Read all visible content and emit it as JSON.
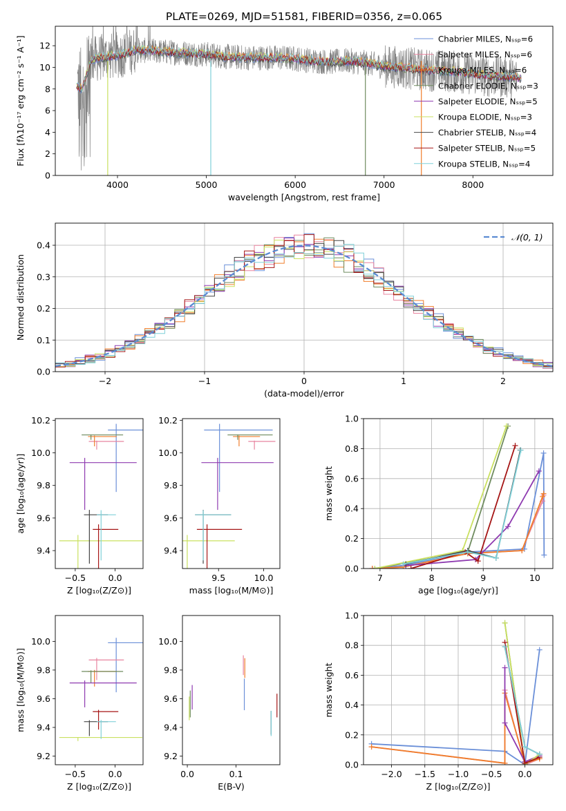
{
  "figure": {
    "title": "PLATE=0269, MJD=51581, FIBERID=0356, z=0.065",
    "series_colors": [
      "#6a8fd8",
      "#e8849f",
      "#f07d2a",
      "#6e8b5e",
      "#8e3ab0",
      "#c9e05f",
      "#444444",
      "#a51414",
      "#7fd0d8"
    ],
    "series_names": [
      "Chabrier MILES, N$_{SSP}$=6",
      "Salpeter MILES, N$_{SSP}$=6",
      "Kroupa MILES, N$_{SSP}$=6",
      "Chabrier ELODIE, N$_{SSP}$=3",
      "Salpeter ELODIE, N$_{SSP}$=5",
      "Kroupa ELODIE, N$_{SSP}$=3",
      "Chabrier STELIB, N$_{SSP}$=4",
      "Salpeter STELIB, N$_{SSP}$=5",
      "Kroupa STELIB, N$_{SSP}$=4"
    ]
  },
  "chart_data": [
    {
      "id": "spectrum",
      "type": "line",
      "xlabel": "wavelength [Angstrom, rest frame]",
      "ylabel": "Flux [f$_\\lambda$10$^{-17}$ erg cm$^{-2}$ s$^{-1}$ A$^{-1}$]",
      "xlim": [
        3300,
        8900
      ],
      "ylim": [
        0,
        13.8
      ],
      "xticks": [
        4000,
        5000,
        6000,
        7000,
        8000
      ],
      "yticks": [
        0,
        2,
        4,
        6,
        8,
        10,
        12
      ],
      "legend": {
        "placement": "upper right",
        "entries": [
          "Chabrier MILES, N$_{SSP}$=6",
          "Salpeter MILES, N$_{SSP}$=6",
          "Kroupa MILES, N$_{SSP}$=6",
          "Chabrier ELODIE, N$_{SSP}$=3",
          "Salpeter ELODIE, N$_{SSP}$=5",
          "Kroupa ELODIE, N$_{SSP}$=3",
          "Chabrier STELIB, N$_{SSP}$=4",
          "Salpeter STELIB, N$_{SSP}$=5",
          "Kroupa STELIB, N$_{SSP}$=4"
        ]
      },
      "data_envelope": {
        "x": [
          3550,
          3600,
          3700,
          3800,
          3900,
          4000,
          4100,
          4200,
          4400,
          4600,
          4800,
          5000,
          5200,
          5400,
          5600,
          5800,
          6000,
          6200,
          6400,
          6600,
          6800,
          7000,
          7200,
          7400,
          7600,
          7800,
          8000,
          8200,
          8400,
          8500
        ],
        "y": [
          8.2,
          8.0,
          10.6,
          10.9,
          11.0,
          11.1,
          11.3,
          11.6,
          11.5,
          11.4,
          11.3,
          11.2,
          11.0,
          10.9,
          10.9,
          10.9,
          10.8,
          10.6,
          10.5,
          10.6,
          10.4,
          10.1,
          10.0,
          9.8,
          9.7,
          9.6,
          9.4,
          9.2,
          9.1,
          9.0
        ]
      },
      "model_drops_x": [
        3890,
        5050,
        6790,
        7420
      ]
    },
    {
      "id": "residuals",
      "type": "histogram",
      "xlabel": "(data-model)/error",
      "ylabel": "Normed distribution",
      "xlim": [
        -2.5,
        2.5
      ],
      "ylim": [
        0,
        0.47
      ],
      "xticks": [
        -2,
        -1,
        0,
        1,
        2
      ],
      "xtick_labels": [
        "−2",
        "−1",
        "0",
        "1",
        "2"
      ],
      "yticks": [
        0.0,
        0.1,
        0.2,
        0.3,
        0.4
      ],
      "grid": true,
      "legend": {
        "placement": "upper right",
        "entries": [
          "$\\mathcal{N}(0,1)$"
        ]
      },
      "reference_curve": {
        "name": "$\\mathcal{N}(0,1)$",
        "mean": 0,
        "sigma": 1
      },
      "bin_width": 0.1
    },
    {
      "id": "age-vs-Z",
      "type": "errorbar",
      "xlabel": "Z [log$_{10}$($Z/Z_\\odot$)]",
      "ylabel": "age  [log$_{10}$($age/yr$)]",
      "xlim": [
        -0.75,
        0.35
      ],
      "ylim": [
        9.29,
        10.21
      ],
      "xticks": [
        -0.5,
        0.0
      ],
      "xtick_labels": [
        "−0.5",
        "0.0"
      ],
      "yticks": [
        9.4,
        9.6,
        9.8,
        10.0,
        10.2
      ],
      "points": [
        {
          "x": 0.14,
          "xerr": 0.23,
          "y": 10.14,
          "yerr": 0.76
        },
        {
          "x": -0.11,
          "xerr": 0.22,
          "y": 10.07,
          "yerr": 0.1
        },
        {
          "x": -0.16,
          "xerr": 0.18,
          "y": 10.1,
          "yerr": 0.12
        },
        {
          "x": -0.16,
          "xerr": 0.26,
          "y": 10.11,
          "yerr": 0.06
        },
        {
          "x": -0.15,
          "xerr": 0.42,
          "y": 9.94,
          "yerr": 0.58
        },
        {
          "x": -0.18,
          "xerr": 0.52,
          "y": 9.46,
          "yerr": 0.72
        },
        {
          "x": -0.24,
          "xerr": 0.15,
          "y": 9.62,
          "yerr": 0.6
        },
        {
          "x": -0.12,
          "xerr": 0.16,
          "y": 9.53,
          "yerr": 0.62
        },
        {
          "x": -0.11,
          "xerr": 0.12,
          "y": 9.62,
          "yerr": 0.56
        }
      ]
    },
    {
      "id": "age-vs-mass",
      "type": "errorbar",
      "xlabel": "mass [log$_{10}$($M/M_\\odot$)]",
      "ylabel": "",
      "xlim": [
        9.1,
        10.18
      ],
      "ylim": [
        9.29,
        10.21
      ],
      "xticks": [
        9.5,
        10.0
      ],
      "yticks": [
        9.4,
        9.6,
        9.8,
        10.0,
        10.2
      ],
      "points": [
        {
          "x": 9.72,
          "xerr": 0.38,
          "y": 10.14,
          "yerr": 0.76
        },
        {
          "x": 9.98,
          "xerr": 0.15,
          "y": 10.07,
          "yerr": 0.1
        },
        {
          "x": 9.81,
          "xerr": 0.15,
          "y": 10.1,
          "yerr": 0.12
        },
        {
          "x": 9.85,
          "xerr": 0.25,
          "y": 10.11,
          "yerr": 0.06
        },
        {
          "x": 9.71,
          "xerr": 0.4,
          "y": 9.94,
          "yerr": 0.58
        },
        {
          "x": 9.34,
          "xerr": 0.34,
          "y": 9.46,
          "yerr": 0.72
        },
        {
          "x": 9.44,
          "xerr": 0.2,
          "y": 9.62,
          "yerr": 0.6
        },
        {
          "x": 9.51,
          "xerr": 0.25,
          "y": 9.53,
          "yerr": 0.62
        },
        {
          "x": 9.44,
          "xerr": 0.2,
          "y": 9.62,
          "yerr": 0.56
        }
      ]
    },
    {
      "id": "weight-vs-age",
      "type": "line",
      "xlabel": "age  [log$_{10}$($age/yr$)]",
      "ylabel": "mass weight",
      "xlim": [
        6.68,
        10.35
      ],
      "ylim": [
        0,
        1.0
      ],
      "xticks": [
        7,
        8,
        9,
        10
      ],
      "yticks": [
        0.0,
        0.2,
        0.4,
        0.6,
        0.8,
        1.0
      ],
      "grid": true,
      "series": [
        {
          "x": [
            6.85,
            7.45,
            8.7,
            9.8,
            10.17,
            10.18
          ],
          "y": [
            0.0,
            0.02,
            0.11,
            0.13,
            0.77,
            0.09
          ]
        },
        {
          "x": [
            6.85,
            7.45,
            8.7,
            9.75,
            10.15,
            10.17
          ],
          "y": [
            0.0,
            0.01,
            0.1,
            0.12,
            0.45,
            0.49
          ]
        },
        {
          "x": [
            6.85,
            7.45,
            8.7,
            9.75,
            10.15,
            10.17
          ],
          "y": [
            0.0,
            0.01,
            0.1,
            0.12,
            0.48,
            0.5
          ]
        },
        {
          "x": [
            6.9,
            8.7,
            9.48
          ],
          "y": [
            0.0,
            0.11,
            0.95
          ]
        },
        {
          "x": [
            7.5,
            8.85,
            9.48,
            10.08
          ],
          "y": [
            0.02,
            0.06,
            0.28,
            0.65
          ]
        },
        {
          "x": [
            6.9,
            8.6,
            9.45
          ],
          "y": [
            0.0,
            0.12,
            0.95
          ]
        },
        {
          "x": [
            7.5,
            8.7,
            9.25,
            9.72
          ],
          "y": [
            0.03,
            0.12,
            0.07,
            0.79
          ]
        },
        {
          "x": [
            7.6,
            8.65,
            8.9,
            9.62
          ],
          "y": [
            0.0,
            0.11,
            0.05,
            0.82
          ]
        },
        {
          "x": [
            7.45,
            8.7,
            9.25,
            9.73
          ],
          "y": [
            0.03,
            0.11,
            0.07,
            0.79
          ]
        }
      ]
    },
    {
      "id": "mass-vs-Z",
      "type": "errorbar",
      "xlabel": "Z [log$_{10}$($Z/Z_\\odot$)]",
      "ylabel": "mass [log$_{10}$($M/M_\\odot$)]",
      "xlim": [
        -0.75,
        0.35
      ],
      "ylim": [
        9.14,
        10.18
      ],
      "xticks": [
        -0.5,
        0.0
      ],
      "xtick_labels": [
        "−0.5",
        "0.0"
      ],
      "yticks": [
        9.2,
        9.4,
        9.6,
        9.8,
        10.0
      ],
      "points": [
        {
          "x": 0.14,
          "xerr": 0.23,
          "y": 9.99,
          "yerr": 0.69
        },
        {
          "x": -0.11,
          "xerr": 0.22,
          "y": 9.87,
          "yerr": 0.28
        },
        {
          "x": -0.16,
          "xerr": 0.18,
          "y": 9.79,
          "yerr": 0.21
        },
        {
          "x": -0.16,
          "xerr": 0.26,
          "y": 9.79,
          "yerr": 0.16
        },
        {
          "x": -0.15,
          "xerr": 0.42,
          "y": 9.71,
          "yerr": 0.34
        },
        {
          "x": -0.18,
          "xerr": 0.52,
          "y": 9.33,
          "yerr": 0.05
        },
        {
          "x": -0.24,
          "xerr": 0.15,
          "y": 9.44,
          "yerr": 0.2
        },
        {
          "x": -0.12,
          "xerr": 0.16,
          "y": 9.51,
          "yerr": 0.25
        },
        {
          "x": -0.11,
          "xerr": 0.12,
          "y": 9.44,
          "yerr": 0.24
        }
      ]
    },
    {
      "id": "mass-vs-ebv",
      "type": "errorbar",
      "xlabel": "E(B-V)",
      "ylabel": "",
      "xlim": [
        -0.01,
        0.19
      ],
      "ylim": [
        9.14,
        10.18
      ],
      "xticks": [
        0.0,
        0.1
      ],
      "yticks": [
        9.2,
        9.4,
        9.6,
        9.8,
        10.0
      ],
      "points": [
        {
          "x": 0.117,
          "y": 9.72,
          "yerr": 0.4
        },
        {
          "x": 0.115,
          "y": 9.89,
          "yerr": 0.25
        },
        {
          "x": 0.118,
          "y": 9.87,
          "yerr": 0.25
        },
        {
          "x": 0.006,
          "y": 9.64,
          "yerr": 0.34
        },
        {
          "x": 0.01,
          "y": 9.68,
          "yerr": 0.31
        },
        {
          "x": 0.004,
          "y": 9.6,
          "yerr": 0.3
        },
        {
          "x": 0.172,
          "y": 9.5,
          "yerr": 0.3
        },
        {
          "x": 0.184,
          "y": 9.62,
          "yerr": 0.3
        },
        {
          "x": 0.172,
          "y": 9.5,
          "yerr": 0.32
        }
      ]
    },
    {
      "id": "weight-vs-Z",
      "type": "line",
      "xlabel": "Z [log$_{10}$($Z/Z_\\odot$)]",
      "ylabel": "mass weight",
      "xlim": [
        -2.42,
        0.42
      ],
      "ylim": [
        0,
        1.0
      ],
      "xticks": [
        -2.0,
        -1.5,
        -1.0,
        -0.5,
        0.0
      ],
      "xtick_labels": [
        "−2.0",
        "−1.5",
        "−1.0",
        "−0.5",
        "0.0"
      ],
      "yticks": [
        0.0,
        0.2,
        0.4,
        0.6,
        0.8,
        1.0
      ],
      "grid": true,
      "series": [
        {
          "x": [
            -2.3,
            -0.3,
            0.0,
            0.22
          ],
          "y": [
            0.14,
            0.09,
            0.0,
            0.77
          ]
        },
        {
          "x": [
            -2.3,
            -0.3,
            -0.3,
            0.0,
            0.22
          ],
          "y": [
            0.12,
            0.01,
            0.5,
            0.0,
            0.04
          ]
        },
        {
          "x": [
            -2.3,
            -0.3,
            -0.3,
            0.0,
            0.22
          ],
          "y": [
            0.12,
            0.01,
            0.48,
            0.01,
            0.04
          ]
        },
        {
          "x": [
            -0.3,
            0.0,
            0.22
          ],
          "y": [
            0.95,
            0.0,
            0.07
          ]
        },
        {
          "x": [
            -0.3,
            -0.3,
            0.0,
            0.22
          ],
          "y": [
            0.65,
            0.28,
            0.02,
            0.06
          ]
        },
        {
          "x": [
            -0.3,
            0.0,
            0.22
          ],
          "y": [
            0.95,
            0.0,
            0.07
          ]
        },
        {
          "x": [
            -0.3,
            0.0,
            0.22
          ],
          "y": [
            0.79,
            0.12,
            0.07
          ]
        },
        {
          "x": [
            -0.3,
            0.0,
            0.22
          ],
          "y": [
            0.82,
            0.01,
            0.05
          ]
        },
        {
          "x": [
            -0.3,
            0.0,
            0.22
          ],
          "y": [
            0.79,
            0.12,
            0.07
          ]
        }
      ]
    }
  ]
}
